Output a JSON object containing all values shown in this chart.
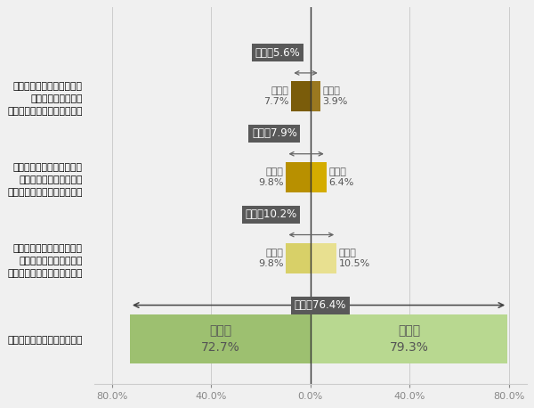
{
  "categories": [
    "そのブランドのパーパスを\n深く理解しており、\n共感しているブランドがある",
    "そのブランドのパーパスを\nある程度理解しており、\n共感しているブランドがある",
    "そのブランドのパーパスを\n何となく理解しており、\n共感しているブランドがある",
    "共感しているブランドはない"
  ],
  "male_values": [
    7.7,
    9.8,
    9.8,
    72.7
  ],
  "female_values": [
    3.9,
    6.4,
    10.5,
    79.3
  ],
  "total_labels": [
    "全体の5.6%",
    "全体の7.9%",
    "全体の10.2%",
    "全体の76.4%"
  ],
  "bar_colors_male": [
    "#7A5C0A",
    "#B89000",
    "#D8D068",
    "#9DC070"
  ],
  "bar_colors_female": [
    "#9A7820",
    "#D4AC00",
    "#E8E090",
    "#B8D890"
  ],
  "tick_values": [
    -80,
    -40,
    0,
    40,
    80
  ],
  "tick_labels": [
    "80.0%",
    "40.0%",
    "0.0%",
    "40.0%",
    "80.0%"
  ],
  "bg_color": "#f0f0f0",
  "grid_color": "#cccccc",
  "label_color": "#555555",
  "box_bg": "#595959",
  "box_fg": "#ffffff",
  "arrow_color": "#666666",
  "vline_color": "#333333"
}
